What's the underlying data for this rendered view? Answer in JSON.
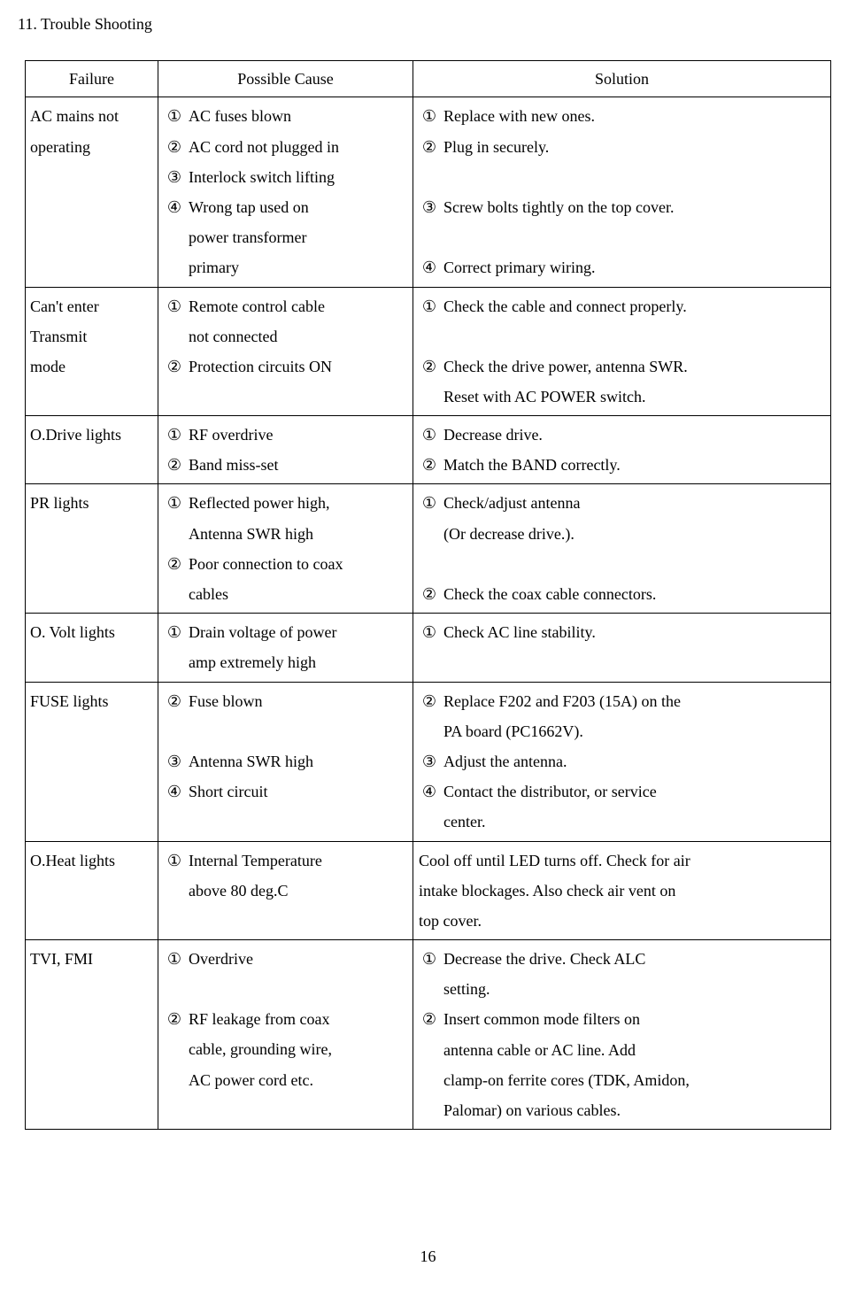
{
  "section_title": "11. Trouble Shooting",
  "page_number": "16",
  "headers": {
    "failure": "Failure",
    "cause": "Possible Cause",
    "solution": "Solution"
  },
  "nums": {
    "n1": "①",
    "n2": "②",
    "n3": "③",
    "n4": "④"
  },
  "rows": {
    "r0": {
      "failure_l1": "AC mains not",
      "failure_l2": "operating",
      "cause1": "AC fuses blown",
      "cause2": "AC cord not plugged in",
      "cause3": "Interlock switch lifting",
      "cause4_l1": "Wrong tap used on",
      "cause4_l2": "power transformer",
      "cause4_l3": "primary",
      "sol1": "Replace with new ones.",
      "sol2": "Plug in securely.",
      "sol3": "Screw bolts tightly on the top cover.",
      "sol4": "Correct primary wiring."
    },
    "r1": {
      "failure_l1": "Can't enter",
      "failure_l2": "Transmit",
      "failure_l3": "mode",
      "cause1_l1": "Remote control cable",
      "cause1_l2": "not connected",
      "cause2": "Protection circuits ON",
      "sol1": "Check the cable and connect properly.",
      "sol2_l1": "Check the drive power, antenna SWR.",
      "sol2_l2": "Reset with AC POWER switch."
    },
    "r2": {
      "failure": "O.Drive lights",
      "cause1": "RF overdrive",
      "cause2": "Band miss-set",
      "sol1": "Decrease drive.",
      "sol2": "Match the BAND correctly."
    },
    "r3": {
      "failure": "PR lights",
      "cause1_l1": "Reflected power high,",
      "cause1_l2": "Antenna SWR high",
      "cause2_l1": "Poor connection to coax",
      "cause2_l2": "cables",
      "sol1_l1": "Check/adjust antenna",
      "sol1_l2": "(Or decrease drive.).",
      "sol2": "Check the coax cable connectors."
    },
    "r4": {
      "failure": "O. Volt lights",
      "cause1_l1": "Drain voltage of power",
      "cause1_l2": "amp extremely high",
      "sol1": "Check AC line stability."
    },
    "r5": {
      "failure": "FUSE lights",
      "cause2": "Fuse blown",
      "cause3": "Antenna SWR high",
      "cause4": "Short circuit",
      "sol2_l1": "Replace F202 and F203 (15A) on the",
      "sol2_l2": "PA board (PC1662V).",
      "sol3": "Adjust the antenna.",
      "sol4_l1": "Contact the distributor, or service",
      "sol4_l2": "center."
    },
    "r6": {
      "failure": "O.Heat lights",
      "cause1_l1": "Internal Temperature",
      "cause1_l2": "above 80 deg.C",
      "sol_l1": "Cool off until LED turns off. Check for air",
      "sol_l2": "intake blockages. Also check air vent on",
      "sol_l3": "top cover."
    },
    "r7": {
      "failure": "TVI, FMI",
      "cause1": "Overdrive",
      "cause2_l1": "RF leakage from coax",
      "cause2_l2": "cable, grounding wire,",
      "cause2_l3": "AC power cord etc.",
      "sol1_l1": "Decrease the drive. Check ALC",
      "sol1_l2": "setting.",
      "sol2_l1": "Insert common mode filters on",
      "sol2_l2": "antenna cable or AC line. Add",
      "sol2_l3": "clamp-on ferrite cores (TDK, Amidon,",
      "sol2_l4": "Palomar) on various cables."
    }
  },
  "style": {
    "font_family": "Times New Roman",
    "font_size_pt": 14,
    "text_color": "#000000",
    "background_color": "#ffffff",
    "border_color": "#000000"
  }
}
